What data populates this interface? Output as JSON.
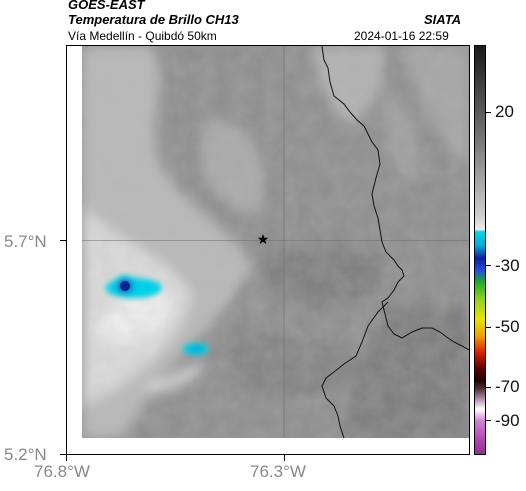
{
  "header": {
    "satellite": "GOES-EAST",
    "product": "Temperatura de Brillo CH13",
    "organization": "SIATA",
    "region": "Vía Medellín - Quibdó 50km",
    "datetime": "2024-01-16 22:59"
  },
  "axes": {
    "lat_labels": [
      "5.7°N",
      "5.2°N"
    ],
    "lon_labels": [
      "76.8°W",
      "76.3°W"
    ]
  },
  "colorbar": {
    "tick_labels": [
      "20",
      "-30",
      "-50",
      "-70",
      "-90"
    ],
    "colors": {
      "warm_top": "#1a1a1a",
      "warm_bottom": "#e6e6e6",
      "cyan": "#00d9e6",
      "blue": "#1020a0",
      "green": "#20b020",
      "yellow": "#e6e600",
      "red": "#e02000",
      "dark": "#200000",
      "magenta": "#b040b0"
    }
  },
  "map": {
    "marker_icon": "star-icon",
    "cloud_colors": {
      "deep": "#0a1a8a",
      "mid": "#1060d0",
      "edge": "#00c8e0"
    }
  }
}
